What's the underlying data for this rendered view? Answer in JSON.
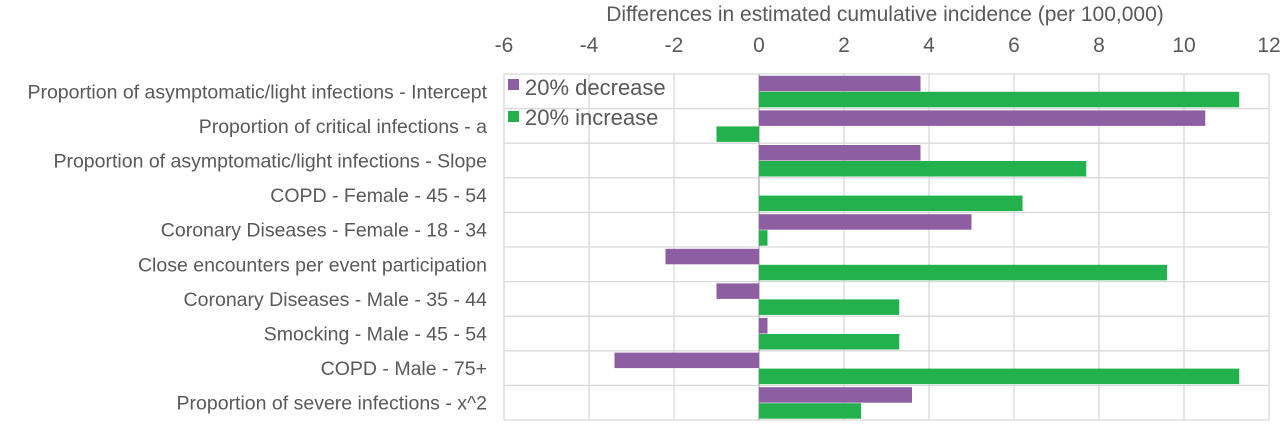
{
  "chart_data": {
    "type": "bar",
    "orientation": "horizontal",
    "title": "",
    "xlabel": "Differences in estimated cumulative incidence (per 100,000)",
    "ylabel": "",
    "xlim": [
      -6,
      12
    ],
    "xticks": [
      "-6",
      "-4",
      "-2",
      "0",
      "2",
      "4",
      "6",
      "8",
      "10",
      "12"
    ],
    "grid": true,
    "legend_position": "top-left",
    "categories": [
      "Proportion of asymptomatic/light infections - Intercept",
      "Proportion of critical infections - a",
      "Proportion of asymptomatic/light infections - Slope",
      "COPD - Female - 45 - 54",
      "Coronary Diseases - Female - 18 - 34",
      "Close encounters per event participation ",
      "Coronary Diseases - Male - 35 - 44",
      "Smocking - Male - 45 - 54",
      "COPD - Male - 75+",
      "Proportion of severe infections - x^2"
    ],
    "series": [
      {
        "name": "20% decrease",
        "color": "#8e5ea2",
        "values": [
          3.8,
          10.5,
          3.8,
          0,
          5.0,
          -2.2,
          -1.0,
          0.2,
          -3.4,
          3.6
        ]
      },
      {
        "name": "20% increase",
        "color": "#22b14c",
        "values": [
          11.3,
          -1.0,
          7.7,
          6.2,
          0.2,
          9.6,
          3.3,
          3.3,
          11.3,
          2.4
        ]
      }
    ]
  }
}
